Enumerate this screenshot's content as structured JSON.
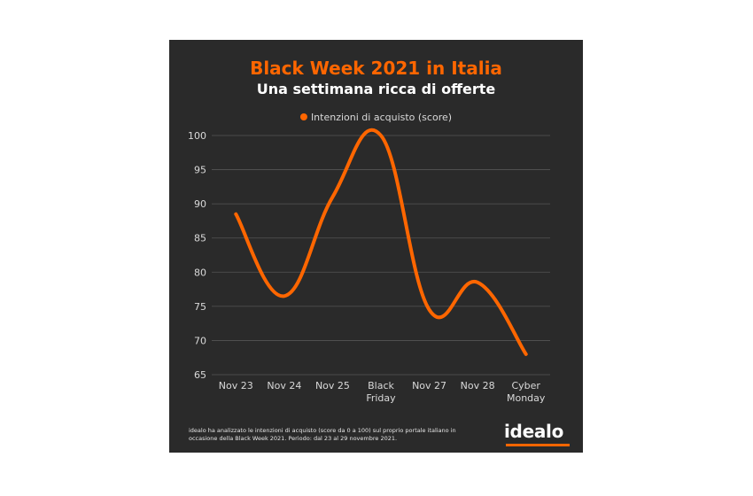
{
  "title": "Black Week 2021 in Italia",
  "subtitle": "Una settimana ricca di offerte",
  "footnote": "idealo ha analizzato le intenzioni di acquisto (score da 0 a 100) sul proprio portale italiano in occasione della Black Week 2021. Periodo: dal 23 al 29 novembre 2021.",
  "logo_text": "idealo",
  "colors": {
    "background": "#2a2a2a",
    "accent": "#ff6600",
    "text": "#ffffff",
    "axis_text": "#d9d9d9",
    "grid": "#555555"
  },
  "chart_data": {
    "type": "line",
    "categories": [
      [
        "Nov 23"
      ],
      [
        "Nov 24"
      ],
      [
        "Nov 25"
      ],
      [
        "Black",
        "Friday"
      ],
      [
        "Nov 27"
      ],
      [
        "Nov 28"
      ],
      [
        "Cyber",
        "Monday"
      ]
    ],
    "series": [
      {
        "name": "Intenzioni di acquisto (score)",
        "values": [
          88.5,
          76.5,
          91,
          100,
          74.5,
          78.5,
          68
        ]
      }
    ],
    "y_ticks": [
      65,
      70,
      75,
      80,
      85,
      90,
      95,
      100
    ],
    "ylim": [
      65,
      100
    ],
    "grid": true,
    "legend_position": "top-center",
    "smooth": true
  }
}
